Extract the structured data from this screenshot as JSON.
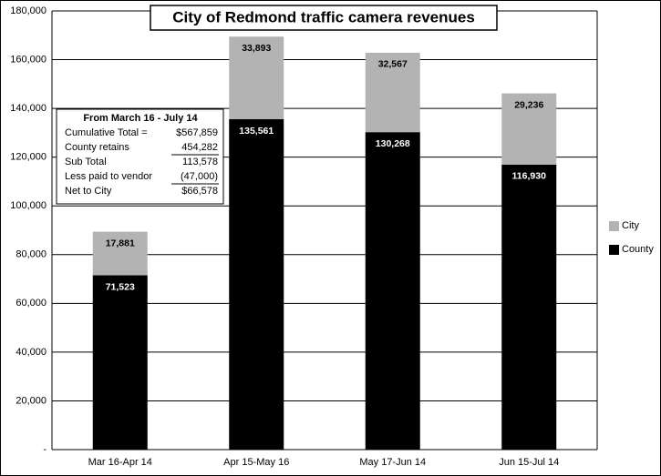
{
  "chart_data": {
    "type": "stacked-bar",
    "title": "City of Redmond traffic camera revenues",
    "categories": [
      "Mar 16-Apr 14",
      "Apr 15-May 16",
      "May 17-Jun 14",
      "Jun 15-Jul 14"
    ],
    "series": [
      {
        "name": "County",
        "color": "#000000",
        "values": [
          71523,
          135561,
          130268,
          116930
        ],
        "value_labels": [
          "71,523",
          "135,561",
          "130,268",
          "116,930"
        ]
      },
      {
        "name": "City",
        "color": "#b3b3b3",
        "values": [
          17881,
          33893,
          32567,
          29236
        ],
        "value_labels": [
          "17,881",
          "33,893",
          "32,567",
          "29,236"
        ]
      }
    ],
    "ylim": [
      0,
      180000
    ],
    "yticks": [
      {
        "value": 0,
        "label": "-"
      },
      {
        "value": 20000,
        "label": "20,000"
      },
      {
        "value": 40000,
        "label": "40,000"
      },
      {
        "value": 60000,
        "label": "60,000"
      },
      {
        "value": 80000,
        "label": "80,000"
      },
      {
        "value": 100000,
        "label": "100,000"
      },
      {
        "value": 120000,
        "label": "120,000"
      },
      {
        "value": 140000,
        "label": "140,000"
      },
      {
        "value": 160000,
        "label": "160,000"
      },
      {
        "value": 180000,
        "label": "180,000"
      }
    ],
    "grid": true,
    "legend": "right",
    "annotation": {
      "title": "From March 16 - July 14",
      "rows": [
        [
          "Cumulative Total =",
          "$567,859"
        ],
        [
          "County retains",
          "454,282"
        ],
        [
          "Sub Total",
          "113,578"
        ],
        [
          "Less paid to vendor",
          "(47,000)"
        ],
        [
          "Net to City",
          "$66,578"
        ]
      ]
    }
  }
}
